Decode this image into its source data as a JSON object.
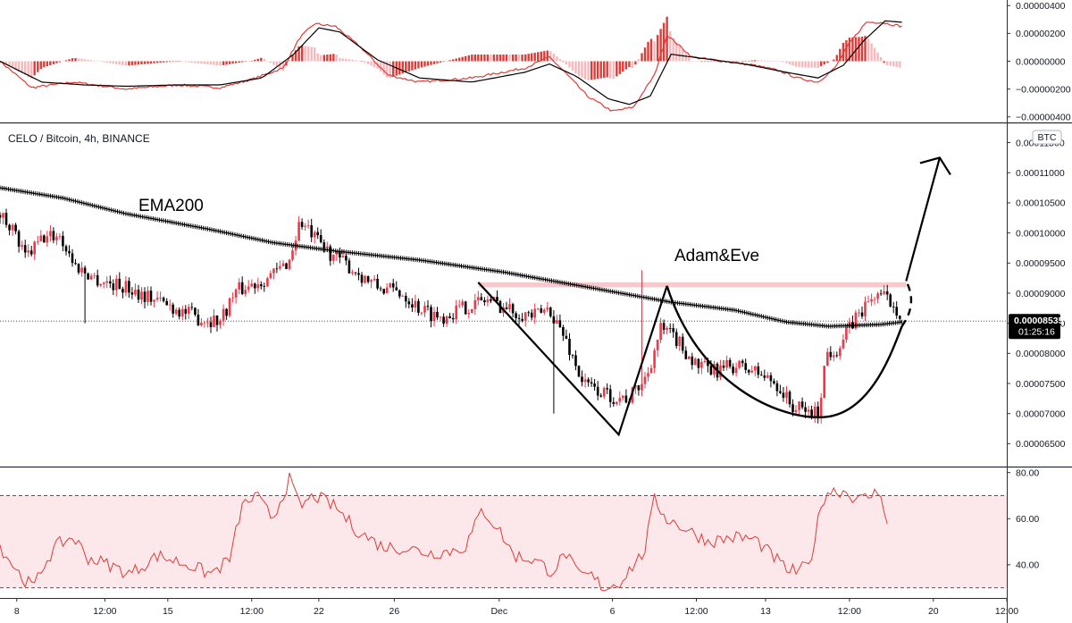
{
  "chart_data": [
    {
      "panel": "macd",
      "type": "line",
      "series_colors": [
        "#e53935",
        "#000000",
        "#f23645"
      ],
      "y_tick_labels": [
        "0.00000400",
        "0.00000200",
        "0.00000000",
        "−0.00000200",
        "−0.00000400"
      ],
      "y_ticks": [
        4e-06,
        2e-06,
        0,
        -2e-06,
        -4e-06
      ],
      "ylim": [
        -4.4e-06,
        4.4e-06
      ],
      "macd": [
        [
          0,
          0
        ],
        [
          15,
          -1.9e-06
        ],
        [
          35,
          -1.5e-06
        ],
        [
          60,
          -2e-06
        ],
        [
          85,
          -1.7e-06
        ],
        [
          105,
          -1.9e-06
        ],
        [
          120,
          -1.3e-06
        ],
        [
          135,
          -5e-07
        ],
        [
          143,
          1.7e-06
        ],
        [
          150,
          2.7e-06
        ],
        [
          160,
          2.5e-06
        ],
        [
          172,
          1e-06
        ],
        [
          185,
          -1e-06
        ],
        [
          200,
          -1.5e-06
        ],
        [
          225,
          -1.2e-06
        ],
        [
          250,
          -5e-07
        ],
        [
          262,
          3e-07
        ],
        [
          270,
          -9e-07
        ],
        [
          280,
          -2.5e-06
        ],
        [
          292,
          -3.6e-06
        ],
        [
          302,
          -3.3e-06
        ],
        [
          312,
          -1e-06
        ],
        [
          318,
          1.9e-06
        ],
        [
          330,
          3e-07
        ],
        [
          345,
          0
        ],
        [
          360,
          -3e-07
        ],
        [
          372,
          -7e-07
        ],
        [
          380,
          -1.2e-06
        ],
        [
          390,
          -1.5e-06
        ],
        [
          398,
          -5e-07
        ],
        [
          405,
          1.3e-06
        ],
        [
          413,
          2.8e-06
        ],
        [
          420,
          2.8e-06
        ],
        [
          430,
          2.5e-06
        ]
      ],
      "signal": [
        [
          0,
          0
        ],
        [
          20,
          -1.5e-06
        ],
        [
          40,
          -1.7e-06
        ],
        [
          60,
          -1.8e-06
        ],
        [
          85,
          -1.7e-06
        ],
        [
          105,
          -1.7e-06
        ],
        [
          125,
          -1.2e-06
        ],
        [
          140,
          5e-07
        ],
        [
          152,
          2.4e-06
        ],
        [
          162,
          2.1e-06
        ],
        [
          180,
          1e-07
        ],
        [
          200,
          -1.2e-06
        ],
        [
          225,
          -1.5e-06
        ],
        [
          250,
          -8e-07
        ],
        [
          262,
          -2e-07
        ],
        [
          275,
          -1.1e-06
        ],
        [
          290,
          -2.7e-06
        ],
        [
          300,
          -3.1e-06
        ],
        [
          310,
          -2.5e-06
        ],
        [
          320,
          5e-07
        ],
        [
          335,
          2e-07
        ],
        [
          355,
          -2e-07
        ],
        [
          375,
          -8e-07
        ],
        [
          390,
          -1.2e-06
        ],
        [
          402,
          -3e-07
        ],
        [
          412,
          1.5e-06
        ],
        [
          422,
          2.9e-06
        ],
        [
          430,
          2.8e-06
        ]
      ]
    },
    {
      "panel": "price",
      "type": "candlestick",
      "title": "CELO / Bitcoin, 4h, BINANCE",
      "currency_label": "BTC",
      "y_tick_labels": [
        "0.00011500",
        "0.00011000",
        "0.00010500",
        "0.00010000",
        "0.00009500",
        "0.00009000",
        "0.00008500",
        "0.00008000",
        "0.00007500",
        "0.00007000",
        "0.00006500"
      ],
      "y_ticks": [
        0.000115,
        0.00011,
        0.000105,
        0.0001,
        9.5e-05,
        9e-05,
        8.5e-05,
        8e-05,
        7.5e-05,
        7e-05,
        6.5e-05
      ],
      "ylim": [
        6.12e-05,
        0.0001182
      ],
      "last_price": "0.00008535",
      "last_price_value": 8.535e-05,
      "countdown": "01:25:16",
      "colors": {
        "up": "#f23645",
        "down": "#000000",
        "ema": "#000000",
        "resistance_band": "#f8c9cc",
        "last_price_tag": "#000000"
      },
      "ema_label": "EMA200",
      "annotation": "Adam&Eve",
      "resistance_band": [
        9.1e-05,
        9.18e-05
      ],
      "ema200": [
        [
          0,
          0.0001075
        ],
        [
          30,
          0.0001058
        ],
        [
          60,
          0.0001032
        ],
        [
          100,
          0.0001006
        ],
        [
          130,
          9.84e-05
        ],
        [
          160,
          9.7e-05
        ],
        [
          200,
          9.55e-05
        ],
        [
          240,
          9.35e-05
        ],
        [
          280,
          9.1e-05
        ],
        [
          320,
          8.85e-05
        ],
        [
          350,
          8.72e-05
        ],
        [
          375,
          8.52e-05
        ],
        [
          395,
          8.45e-05
        ],
        [
          420,
          8.48e-05
        ],
        [
          430,
          8.52e-05
        ]
      ],
      "price_path": [
        [
          0,
          0.000103
        ],
        [
          5,
          0.0001015
        ],
        [
          12,
          9.58e-05
        ],
        [
          20,
          9.9e-05
        ],
        [
          28,
          9.98e-05
        ],
        [
          36,
          9.45e-05
        ],
        [
          48,
          9.2e-05
        ],
        [
          60,
          9.1e-05
        ],
        [
          72,
          8.93e-05
        ],
        [
          85,
          8.73e-05
        ],
        [
          95,
          8.58e-05
        ],
        [
          105,
          8.55e-05
        ],
        [
          112,
          9.02e-05
        ],
        [
          125,
          9.22e-05
        ],
        [
          132,
          9.35e-05
        ],
        [
          138,
          9.55e-05
        ],
        [
          143,
          0.000102
        ],
        [
          150,
          9.9e-05
        ],
        [
          158,
          9.65e-05
        ],
        [
          170,
          9.35e-05
        ],
        [
          180,
          9.1e-05
        ],
        [
          192,
          9e-05
        ],
        [
          200,
          8.75e-05
        ],
        [
          210,
          8.6e-05
        ],
        [
          220,
          8.75e-05
        ],
        [
          232,
          8.9e-05
        ],
        [
          245,
          8.7e-05
        ],
        [
          255,
          8.62e-05
        ],
        [
          262,
          8.75e-05
        ],
        [
          270,
          8.2e-05
        ],
        [
          278,
          7.5e-05
        ],
        [
          290,
          7.3e-05
        ],
        [
          300,
          7.25e-05
        ],
        [
          308,
          7.6e-05
        ],
        [
          315,
          8.4e-05
        ],
        [
          322,
          8.25e-05
        ],
        [
          332,
          7.8e-05
        ],
        [
          340,
          7.7e-05
        ],
        [
          350,
          7.8e-05
        ],
        [
          360,
          7.7e-05
        ],
        [
          370,
          7.5e-05
        ],
        [
          378,
          7.1e-05
        ],
        [
          390,
          7e-05
        ],
        [
          394,
          8e-05
        ],
        [
          400,
          8.1e-05
        ],
        [
          408,
          8.6e-05
        ],
        [
          418,
          9e-05
        ],
        [
          425,
          8.85e-05
        ],
        [
          430,
          8.65e-05
        ]
      ],
      "wicks": [
        [
          41,
          8.5e-05
        ],
        [
          145,
          0.000107
        ],
        [
          264,
          7e-05
        ],
        [
          306,
          9.38e-05
        ]
      ],
      "pattern_lines": [
        [
          228,
          9.18e-05
        ],
        [
          295,
          6.65e-05
        ],
        [
          318,
          9.12e-05
        ],
        [
          392,
          6.94e-05
        ],
        [
          430,
          8.45e-05
        ]
      ],
      "forecast_arrow": [
        [
          432,
          9.2e-05
        ],
        [
          448,
          0.0001125
        ]
      ]
    },
    {
      "panel": "rsi",
      "type": "line",
      "color": "#e53935",
      "band": [
        30,
        70
      ],
      "band_color": "#fce8ea",
      "y_tick_labels": [
        "80.00",
        "60.00",
        "40.00"
      ],
      "y_ticks": [
        80,
        60,
        40
      ],
      "ylim": [
        25.6,
        82.2
      ],
      "values": [
        [
          0,
          48
        ],
        [
          10,
          35
        ],
        [
          16,
          30
        ],
        [
          22,
          42
        ],
        [
          28,
          49
        ],
        [
          35,
          52
        ],
        [
          42,
          43
        ],
        [
          52,
          40
        ],
        [
          62,
          36
        ],
        [
          75,
          44
        ],
        [
          90,
          40
        ],
        [
          100,
          36
        ],
        [
          105,
          39
        ],
        [
          110,
          43
        ],
        [
          115,
          65
        ],
        [
          122,
          70
        ],
        [
          130,
          60
        ],
        [
          138,
          77
        ],
        [
          143,
          65
        ],
        [
          150,
          70
        ],
        [
          160,
          65
        ],
        [
          170,
          55
        ],
        [
          182,
          48
        ],
        [
          195,
          47
        ],
        [
          205,
          45
        ],
        [
          215,
          46
        ],
        [
          222,
          48
        ],
        [
          230,
          64
        ],
        [
          238,
          55
        ],
        [
          245,
          44
        ],
        [
          255,
          42
        ],
        [
          263,
          37
        ],
        [
          270,
          45
        ],
        [
          275,
          36
        ],
        [
          282,
          35
        ],
        [
          288,
          30
        ],
        [
          295,
          32
        ],
        [
          302,
          40
        ],
        [
          307,
          45
        ],
        [
          312,
          68
        ],
        [
          318,
          60
        ],
        [
          328,
          55
        ],
        [
          338,
          50
        ],
        [
          350,
          52
        ],
        [
          360,
          51
        ],
        [
          367,
          45
        ],
        [
          375,
          38
        ],
        [
          380,
          37
        ],
        [
          386,
          40
        ],
        [
          392,
          68
        ],
        [
          395,
          72
        ],
        [
          402,
          72
        ],
        [
          410,
          68
        ],
        [
          420,
          72
        ],
        [
          424,
          52
        ]
      ]
    }
  ],
  "x_axis_labels": [
    "8",
    "12:00",
    "15",
    "12:00",
    "22",
    "26",
    "Dec",
    "6",
    "12:00",
    "13",
    "12:00",
    "20",
    "12:00"
  ],
  "x_axis_positions": [
    8,
    50,
    80,
    120,
    152,
    188,
    238,
    292,
    332,
    365,
    405,
    445,
    480
  ]
}
